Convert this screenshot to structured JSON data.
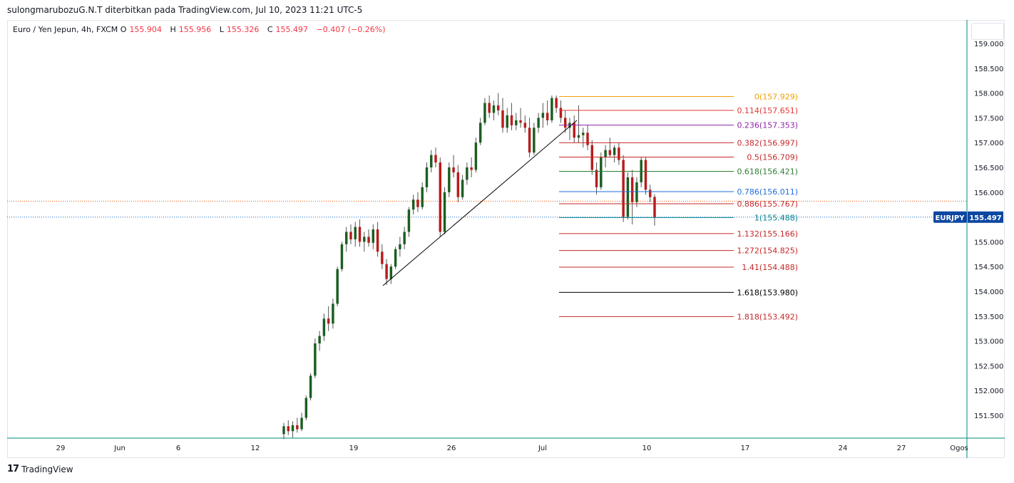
{
  "header": {
    "attribution": "sulongmarubozuG.N.T diterbitkan pada TradingView.com, Jul 10, 2023 11:21 UTC-5"
  },
  "legend": {
    "title": "Euro / Yen Jepun, 4h, FXCM",
    "o_label": "O",
    "o_value": "155.904",
    "h_label": "H",
    "h_value": "155.956",
    "l_label": "L",
    "l_value": "155.326",
    "c_label": "C",
    "c_value": "155.497",
    "change": "−0.407 (−0.26%)"
  },
  "price_tag": {
    "symbol": "EURJPY",
    "value": "155.497"
  },
  "footer": {
    "brand": "TradingView",
    "mark": "17"
  },
  "colors": {
    "up": "#1b5e20",
    "down": "#b71c1c",
    "wick": "#555555",
    "axis_text": "#131722",
    "tag_bg": "#0d47a1",
    "current_line": "#1565c0",
    "high_line": "#e65100",
    "frame": "#00897b"
  },
  "chart_data": {
    "type": "candlestick",
    "title": "Euro / Yen Jepun, 4h, FXCM",
    "xlabel": "",
    "ylabel": "",
    "ylim": [
      151.2,
      159.3
    ],
    "y_ticks": [
      "159.000",
      "158.500",
      "158.000",
      "157.500",
      "157.000",
      "156.500",
      "156.000",
      "155.500",
      "155.000",
      "154.500",
      "154.000",
      "153.500",
      "153.000",
      "152.500",
      "152.000",
      "151.500"
    ],
    "x_ticks": [
      "29",
      "Jun",
      "6",
      "12",
      "19",
      "26",
      "Jul",
      "10",
      "17",
      "24",
      "27",
      "Ogos"
    ],
    "last_price": 155.497,
    "fib_levels": [
      {
        "label": "0(157.929)",
        "value": 157.929,
        "color": "#f0a000"
      },
      {
        "label": "0.114(157.651)",
        "value": 157.651,
        "color": "#e53935"
      },
      {
        "label": "0.236(157.353)",
        "value": 157.353,
        "color": "#8e24aa"
      },
      {
        "label": "0.382(156.997)",
        "value": 156.997,
        "color": "#c62828"
      },
      {
        "label": "0.5(156.709)",
        "value": 156.709,
        "color": "#c62828"
      },
      {
        "label": "0.618(156.421)",
        "value": 156.421,
        "color": "#2e7d32"
      },
      {
        "label": "0.786(156.011)",
        "value": 156.011,
        "color": "#1e6fd9"
      },
      {
        "label": "0.886(155.767)",
        "value": 155.767,
        "color": "#c62828"
      },
      {
        "label": "1(155.488)",
        "value": 155.488,
        "color": "#00838f"
      },
      {
        "label": "1.132(155.166)",
        "value": 155.166,
        "color": "#c62828"
      },
      {
        "label": "1.272(154.825)",
        "value": 154.825,
        "color": "#c62828"
      },
      {
        "label": "1.41(154.488)",
        "value": 154.488,
        "color": "#c62828"
      },
      {
        "label": "1.618(153.980)",
        "value": 153.98,
        "color": "#000000"
      },
      {
        "label": "1.818(153.492)",
        "value": 153.492,
        "color": "#c62828"
      }
    ],
    "trendline": {
      "from": 154.13,
      "to": 157.45
    },
    "series": [
      {
        "o": 151.12,
        "h": 151.35,
        "l": 151.02,
        "c": 151.28
      },
      {
        "o": 151.28,
        "h": 151.4,
        "l": 151.1,
        "c": 151.18
      },
      {
        "o": 151.18,
        "h": 151.38,
        "l": 151.05,
        "c": 151.3
      },
      {
        "o": 151.3,
        "h": 151.45,
        "l": 151.15,
        "c": 151.22
      },
      {
        "o": 151.22,
        "h": 151.55,
        "l": 151.18,
        "c": 151.45
      },
      {
        "o": 151.45,
        "h": 151.9,
        "l": 151.4,
        "c": 151.85
      },
      {
        "o": 151.85,
        "h": 152.35,
        "l": 151.8,
        "c": 152.3
      },
      {
        "o": 152.3,
        "h": 153.05,
        "l": 152.25,
        "c": 152.95
      },
      {
        "o": 152.95,
        "h": 153.2,
        "l": 152.8,
        "c": 153.1
      },
      {
        "o": 153.1,
        "h": 153.55,
        "l": 153.0,
        "c": 153.45
      },
      {
        "o": 153.45,
        "h": 153.7,
        "l": 153.2,
        "c": 153.35
      },
      {
        "o": 153.35,
        "h": 153.85,
        "l": 153.25,
        "c": 153.75
      },
      {
        "o": 153.75,
        "h": 154.5,
        "l": 153.7,
        "c": 154.45
      },
      {
        "o": 154.45,
        "h": 155.0,
        "l": 154.4,
        "c": 154.95
      },
      {
        "o": 154.95,
        "h": 155.3,
        "l": 154.8,
        "c": 155.2
      },
      {
        "o": 155.2,
        "h": 155.35,
        "l": 154.95,
        "c": 155.05
      },
      {
        "o": 155.05,
        "h": 155.4,
        "l": 154.9,
        "c": 155.3
      },
      {
        "o": 155.3,
        "h": 155.45,
        "l": 154.9,
        "c": 155.0
      },
      {
        "o": 155.0,
        "h": 155.2,
        "l": 154.8,
        "c": 155.1
      },
      {
        "o": 155.1,
        "h": 155.25,
        "l": 154.9,
        "c": 154.98
      },
      {
        "o": 154.98,
        "h": 155.35,
        "l": 154.85,
        "c": 155.25
      },
      {
        "o": 155.25,
        "h": 155.4,
        "l": 154.7,
        "c": 154.8
      },
      {
        "o": 154.8,
        "h": 154.95,
        "l": 154.45,
        "c": 154.55
      },
      {
        "o": 154.55,
        "h": 154.65,
        "l": 154.13,
        "c": 154.25
      },
      {
        "o": 154.25,
        "h": 154.55,
        "l": 154.15,
        "c": 154.5
      },
      {
        "o": 154.5,
        "h": 154.9,
        "l": 154.45,
        "c": 154.85
      },
      {
        "o": 154.85,
        "h": 155.1,
        "l": 154.7,
        "c": 154.95
      },
      {
        "o": 154.95,
        "h": 155.3,
        "l": 154.85,
        "c": 155.2
      },
      {
        "o": 155.2,
        "h": 155.7,
        "l": 155.1,
        "c": 155.65
      },
      {
        "o": 155.65,
        "h": 155.95,
        "l": 155.55,
        "c": 155.85
      },
      {
        "o": 155.85,
        "h": 156.0,
        "l": 155.6,
        "c": 155.7
      },
      {
        "o": 155.7,
        "h": 156.2,
        "l": 155.65,
        "c": 156.1
      },
      {
        "o": 156.1,
        "h": 156.6,
        "l": 156.0,
        "c": 156.5
      },
      {
        "o": 156.5,
        "h": 156.85,
        "l": 156.4,
        "c": 156.75
      },
      {
        "o": 156.75,
        "h": 156.9,
        "l": 156.5,
        "c": 156.6
      },
      {
        "o": 156.6,
        "h": 156.7,
        "l": 155.1,
        "c": 155.2
      },
      {
        "o": 155.2,
        "h": 156.1,
        "l": 155.15,
        "c": 156.0
      },
      {
        "o": 156.0,
        "h": 156.6,
        "l": 155.9,
        "c": 156.5
      },
      {
        "o": 156.5,
        "h": 156.75,
        "l": 156.3,
        "c": 156.4
      },
      {
        "o": 156.4,
        "h": 156.55,
        "l": 155.8,
        "c": 155.9
      },
      {
        "o": 155.9,
        "h": 156.35,
        "l": 155.85,
        "c": 156.25
      },
      {
        "o": 156.25,
        "h": 156.6,
        "l": 156.15,
        "c": 156.5
      },
      {
        "o": 156.5,
        "h": 156.7,
        "l": 156.3,
        "c": 156.45
      },
      {
        "o": 156.45,
        "h": 157.1,
        "l": 156.4,
        "c": 157.0
      },
      {
        "o": 157.0,
        "h": 157.5,
        "l": 156.95,
        "c": 157.4
      },
      {
        "o": 157.4,
        "h": 157.9,
        "l": 157.35,
        "c": 157.8
      },
      {
        "o": 157.8,
        "h": 157.95,
        "l": 157.5,
        "c": 157.6
      },
      {
        "o": 157.6,
        "h": 157.85,
        "l": 157.45,
        "c": 157.75
      },
      {
        "o": 157.75,
        "h": 158.0,
        "l": 157.55,
        "c": 157.65
      },
      {
        "o": 157.65,
        "h": 157.9,
        "l": 157.2,
        "c": 157.3
      },
      {
        "o": 157.3,
        "h": 157.7,
        "l": 157.2,
        "c": 157.55
      },
      {
        "o": 157.55,
        "h": 157.8,
        "l": 157.25,
        "c": 157.35
      },
      {
        "o": 157.35,
        "h": 157.6,
        "l": 157.25,
        "c": 157.45
      },
      {
        "o": 157.45,
        "h": 157.7,
        "l": 157.3,
        "c": 157.4
      },
      {
        "o": 157.4,
        "h": 157.55,
        "l": 157.2,
        "c": 157.3
      },
      {
        "o": 157.3,
        "h": 157.5,
        "l": 156.7,
        "c": 156.8
      },
      {
        "o": 156.8,
        "h": 157.4,
        "l": 156.75,
        "c": 157.3
      },
      {
        "o": 157.3,
        "h": 157.6,
        "l": 157.2,
        "c": 157.5
      },
      {
        "o": 157.5,
        "h": 157.8,
        "l": 157.3,
        "c": 157.6
      },
      {
        "o": 157.6,
        "h": 157.85,
        "l": 157.35,
        "c": 157.45
      },
      {
        "o": 157.45,
        "h": 157.95,
        "l": 157.4,
        "c": 157.9
      },
      {
        "o": 157.9,
        "h": 157.95,
        "l": 157.6,
        "c": 157.7
      },
      {
        "o": 157.7,
        "h": 157.85,
        "l": 157.4,
        "c": 157.5
      },
      {
        "o": 157.5,
        "h": 157.65,
        "l": 157.2,
        "c": 157.3
      },
      {
        "o": 157.3,
        "h": 157.5,
        "l": 157.05,
        "c": 157.4
      },
      {
        "o": 157.4,
        "h": 157.55,
        "l": 157.0,
        "c": 157.1
      },
      {
        "o": 157.1,
        "h": 157.75,
        "l": 157.0,
        "c": 157.15
      },
      {
        "o": 157.15,
        "h": 157.3,
        "l": 156.9,
        "c": 157.2
      },
      {
        "o": 157.2,
        "h": 157.35,
        "l": 156.85,
        "c": 156.95
      },
      {
        "o": 156.95,
        "h": 157.05,
        "l": 156.35,
        "c": 156.45
      },
      {
        "o": 156.45,
        "h": 156.6,
        "l": 155.95,
        "c": 156.1
      },
      {
        "o": 156.1,
        "h": 156.8,
        "l": 156.05,
        "c": 156.7
      },
      {
        "o": 156.7,
        "h": 156.95,
        "l": 156.5,
        "c": 156.85
      },
      {
        "o": 156.85,
        "h": 157.1,
        "l": 156.7,
        "c": 156.75
      },
      {
        "o": 156.75,
        "h": 156.95,
        "l": 156.6,
        "c": 156.9
      },
      {
        "o": 156.9,
        "h": 157.0,
        "l": 156.55,
        "c": 156.65
      },
      {
        "o": 156.65,
        "h": 156.75,
        "l": 155.4,
        "c": 155.5
      },
      {
        "o": 155.5,
        "h": 156.4,
        "l": 155.45,
        "c": 156.3
      },
      {
        "o": 156.3,
        "h": 156.45,
        "l": 155.35,
        "c": 155.8
      },
      {
        "o": 155.8,
        "h": 156.3,
        "l": 155.7,
        "c": 156.2
      },
      {
        "o": 156.2,
        "h": 156.7,
        "l": 156.1,
        "c": 156.65
      },
      {
        "o": 156.65,
        "h": 156.7,
        "l": 155.95,
        "c": 156.05
      },
      {
        "o": 156.05,
        "h": 156.15,
        "l": 155.8,
        "c": 155.9
      },
      {
        "o": 155.904,
        "h": 155.956,
        "l": 155.326,
        "c": 155.497
      }
    ]
  }
}
